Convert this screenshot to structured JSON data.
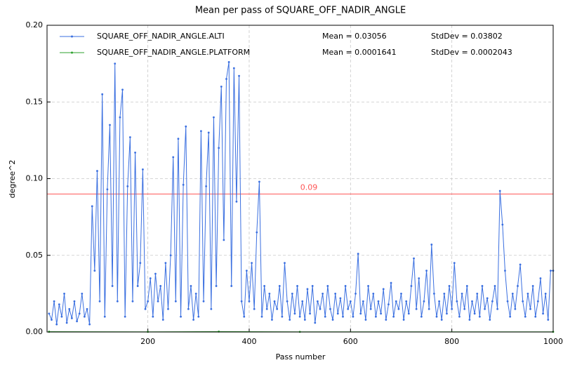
{
  "chart_data": {
    "type": "line",
    "title": "Mean per pass of SQUARE_OFF_NADIR_ANGLE",
    "x_label": "Pass number",
    "y_label": "degree^2",
    "xlim": [
      1,
      1000
    ],
    "ylim": [
      0,
      0.2
    ],
    "xticks": [
      200,
      400,
      600,
      800,
      1000
    ],
    "yticks": [
      {
        "value": 0,
        "label": "0.00"
      },
      {
        "value": 0.05,
        "label": "0.05"
      },
      {
        "value": 0.1,
        "label": "0.10"
      },
      {
        "value": 0.15,
        "label": "0.15"
      },
      {
        "value": 0.2,
        "label": "0.20"
      }
    ],
    "grid": true,
    "legend": "upper left",
    "threshold": {
      "value": 0.09,
      "label": "0.09",
      "color": "#ff5555"
    },
    "series": [
      {
        "name": "SQUARE_OFF_NADIR_ANGLE.ALTI",
        "color": "#3a6fe0",
        "stats": [
          "Mean = 0.03056",
          "StdDev = 0.03802"
        ],
        "x": [
          5,
          10,
          15,
          20,
          25,
          30,
          35,
          40,
          45,
          50,
          55,
          60,
          65,
          70,
          75,
          80,
          85,
          90,
          95,
          100,
          105,
          110,
          115,
          120,
          125,
          130,
          135,
          140,
          145,
          150,
          155,
          160,
          165,
          170,
          175,
          180,
          185,
          190,
          195,
          200,
          205,
          210,
          215,
          220,
          225,
          230,
          235,
          240,
          245,
          250,
          255,
          260,
          265,
          270,
          275,
          280,
          285,
          290,
          295,
          300,
          305,
          310,
          315,
          320,
          325,
          330,
          335,
          340,
          345,
          350,
          355,
          360,
          365,
          370,
          375,
          380,
          385,
          390,
          395,
          400,
          405,
          410,
          415,
          420,
          425,
          430,
          435,
          440,
          445,
          450,
          455,
          460,
          465,
          470,
          475,
          480,
          485,
          490,
          495,
          500,
          505,
          510,
          515,
          520,
          525,
          530,
          535,
          540,
          545,
          550,
          555,
          560,
          565,
          570,
          575,
          580,
          585,
          590,
          595,
          600,
          605,
          610,
          615,
          620,
          625,
          630,
          635,
          640,
          645,
          650,
          655,
          660,
          665,
          670,
          675,
          680,
          685,
          690,
          695,
          700,
          705,
          710,
          715,
          720,
          725,
          730,
          735,
          740,
          745,
          750,
          755,
          760,
          765,
          770,
          775,
          780,
          785,
          790,
          795,
          800,
          805,
          810,
          815,
          820,
          825,
          830,
          835,
          840,
          845,
          850,
          855,
          860,
          865,
          870,
          875,
          880,
          885,
          890,
          895,
          900,
          905,
          910,
          915,
          920,
          925,
          930,
          935,
          940,
          945,
          950,
          955,
          960,
          965,
          970,
          975,
          980,
          985,
          990,
          995,
          1000
        ],
        "values": [
          0.012,
          0.008,
          0.02,
          0.005,
          0.018,
          0.01,
          0.025,
          0.006,
          0.015,
          0.009,
          0.02,
          0.007,
          0.012,
          0.025,
          0.01,
          0.015,
          0.005,
          0.082,
          0.04,
          0.105,
          0.02,
          0.155,
          0.01,
          0.093,
          0.135,
          0.03,
          0.175,
          0.02,
          0.14,
          0.158,
          0.01,
          0.095,
          0.127,
          0.02,
          0.117,
          0.03,
          0.045,
          0.106,
          0.015,
          0.02,
          0.035,
          0.01,
          0.038,
          0.02,
          0.03,
          0.008,
          0.045,
          0.015,
          0.05,
          0.114,
          0.02,
          0.126,
          0.01,
          0.096,
          0.134,
          0.015,
          0.03,
          0.008,
          0.025,
          0.01,
          0.131,
          0.02,
          0.095,
          0.13,
          0.015,
          0.14,
          0.03,
          0.12,
          0.16,
          0.06,
          0.165,
          0.176,
          0.03,
          0.172,
          0.085,
          0.167,
          0.02,
          0.01,
          0.04,
          0.02,
          0.045,
          0.015,
          0.065,
          0.098,
          0.01,
          0.03,
          0.015,
          0.025,
          0.008,
          0.02,
          0.015,
          0.03,
          0.01,
          0.045,
          0.02,
          0.008,
          0.025,
          0.012,
          0.03,
          0.01,
          0.02,
          0.008,
          0.028,
          0.012,
          0.03,
          0.006,
          0.02,
          0.015,
          0.025,
          0.01,
          0.03,
          0.015,
          0.008,
          0.025,
          0.012,
          0.022,
          0.01,
          0.03,
          0.015,
          0.02,
          0.01,
          0.025,
          0.051,
          0.012,
          0.02,
          0.008,
          0.03,
          0.015,
          0.025,
          0.01,
          0.02,
          0.012,
          0.028,
          0.008,
          0.018,
          0.032,
          0.01,
          0.02,
          0.015,
          0.025,
          0.008,
          0.02,
          0.012,
          0.03,
          0.048,
          0.015,
          0.035,
          0.01,
          0.02,
          0.04,
          0.015,
          0.057,
          0.025,
          0.01,
          0.02,
          0.008,
          0.025,
          0.012,
          0.03,
          0.015,
          0.045,
          0.02,
          0.01,
          0.025,
          0.015,
          0.03,
          0.008,
          0.02,
          0.012,
          0.025,
          0.01,
          0.03,
          0.015,
          0.022,
          0.008,
          0.02,
          0.03,
          0.015,
          0.092,
          0.07,
          0.04,
          0.02,
          0.01,
          0.025,
          0.015,
          0.03,
          0.044,
          0.02,
          0.01,
          0.025,
          0.015,
          0.03,
          0.01,
          0.02,
          0.035,
          0.012,
          0.025,
          0.008,
          0.04,
          0.04
        ]
      },
      {
        "name": "SQUARE_OFF_NADIR_ANGLE.PLATFORM",
        "color": "#2ca02c",
        "stats": [
          "Mean = 0.0001641",
          "StdDev = 0.0002043"
        ],
        "x": [
          5,
          200,
          340,
          500,
          1000
        ],
        "values": [
          0.0002,
          0.0001,
          0.0003,
          0.0001,
          0.0001
        ]
      }
    ]
  }
}
